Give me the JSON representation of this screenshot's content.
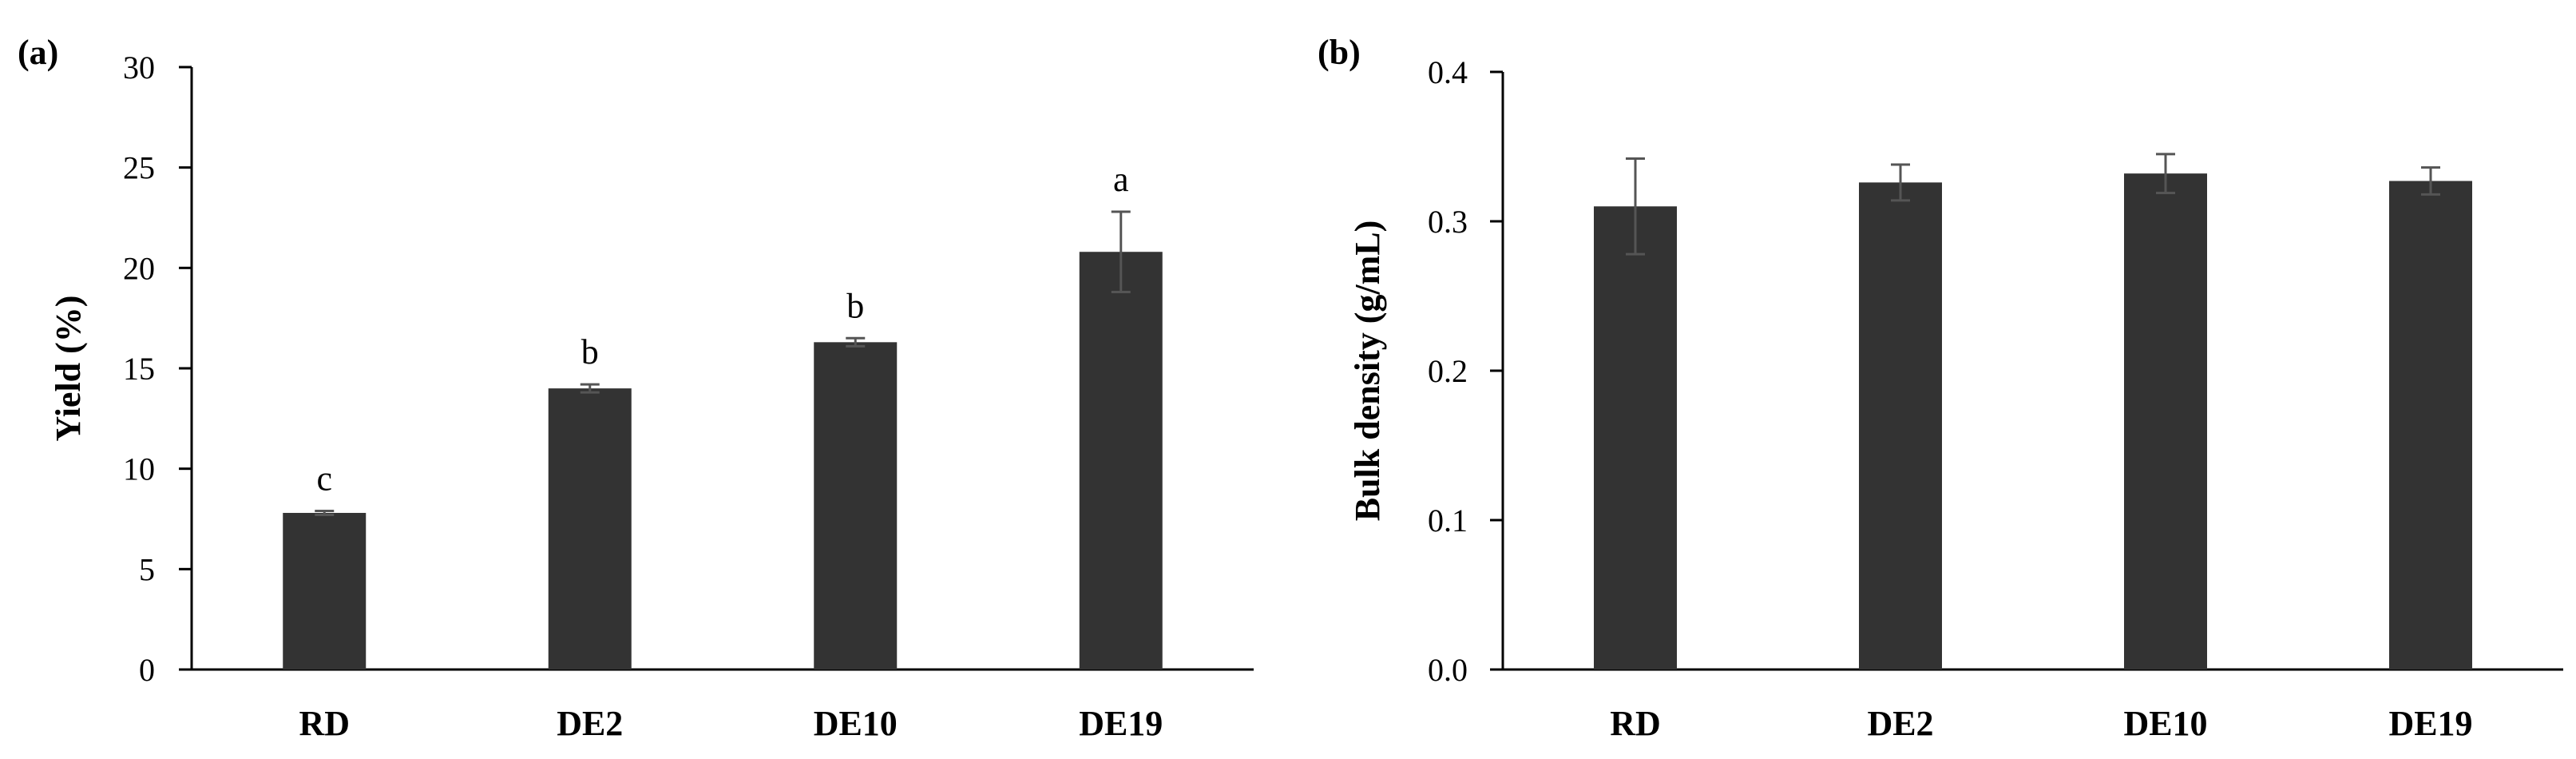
{
  "chart_data": [
    {
      "type": "bar",
      "panel_label": "(a)",
      "title": "",
      "xlabel": "",
      "ylabel": "Yield (%)",
      "ylim": [
        0,
        30
      ],
      "yticks": [
        0,
        5,
        10,
        15,
        20,
        25,
        30
      ],
      "ytick_labels": [
        "0",
        "5",
        "10",
        "15",
        "20",
        "25",
        "30"
      ],
      "categories": [
        "RD",
        "DE2",
        "DE10",
        "DE19"
      ],
      "values": [
        7.8,
        14.0,
        16.3,
        20.8
      ],
      "errors": [
        0.1,
        0.2,
        0.2,
        2.0
      ],
      "significance": [
        "c",
        "b",
        "b",
        "a"
      ],
      "bar_color": "#333333",
      "error_color": "#555555",
      "grid": false,
      "legend": "none"
    },
    {
      "type": "bar",
      "panel_label": "(b)",
      "title": "",
      "xlabel": "",
      "ylabel": "Bulk density (g/mL)",
      "ylim": [
        0,
        0.4
      ],
      "yticks": [
        0,
        0.1,
        0.2,
        0.3,
        0.4
      ],
      "ytick_labels": [
        "0.0",
        "0.1",
        "0.2",
        "0.3",
        "0.4"
      ],
      "categories": [
        "RD",
        "DE2",
        "DE10",
        "DE19"
      ],
      "values": [
        0.31,
        0.326,
        0.332,
        0.327
      ],
      "errors": [
        0.032,
        0.012,
        0.013,
        0.009
      ],
      "significance": [],
      "bar_color": "#333333",
      "error_color": "#555555",
      "grid": false,
      "legend": "none"
    }
  ]
}
